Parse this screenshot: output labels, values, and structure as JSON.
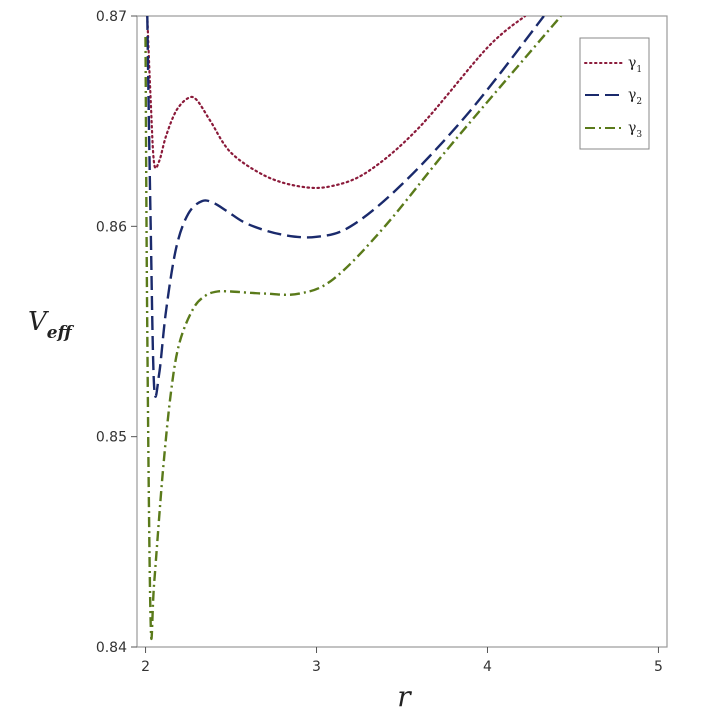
{
  "chart_data": {
    "type": "line",
    "xlabel": "r",
    "ylabel": "V",
    "ylabel_sub": "eff",
    "xlim": [
      1.95,
      5.05
    ],
    "ylim": [
      0.84,
      0.87
    ],
    "xticks": [
      2,
      3,
      4,
      5
    ],
    "xtick_labels": [
      "2",
      "3",
      "4",
      "5"
    ],
    "yticks": [
      0.84,
      0.85,
      0.86,
      0.87
    ],
    "ytick_labels": [
      "0.84",
      "0.85",
      "0.86",
      "0.87"
    ],
    "grid": false,
    "legend_position": "top-right",
    "series": [
      {
        "name": "γ",
        "name_sub": "1",
        "color": "#8b1a3a",
        "style": "dotted",
        "x": [
          2.01,
          2.03,
          2.05,
          2.08,
          2.12,
          2.18,
          2.25,
          2.3,
          2.38,
          2.5,
          2.7,
          2.9,
          3.08,
          3.3,
          3.6,
          4.0,
          4.22
        ],
        "y": [
          0.87,
          0.866,
          0.863,
          0.8631,
          0.8643,
          0.8655,
          0.8661,
          0.866,
          0.865,
          0.8635,
          0.8624,
          0.8619,
          0.8619,
          0.8626,
          0.8647,
          0.8685,
          0.87
        ]
      },
      {
        "name": "γ",
        "name_sub": "2",
        "color": "#1a2a6c",
        "style": "dashed",
        "x": [
          2.01,
          2.03,
          2.05,
          2.08,
          2.12,
          2.18,
          2.25,
          2.33,
          2.4,
          2.48,
          2.6,
          2.8,
          3.0,
          3.2,
          3.5,
          3.9,
          4.33
        ],
        "y": [
          0.87,
          0.86,
          0.8524,
          0.853,
          0.856,
          0.859,
          0.8606,
          0.8612,
          0.8611,
          0.8607,
          0.8601,
          0.8596,
          0.8595,
          0.86,
          0.862,
          0.8655,
          0.87
        ]
      },
      {
        "name": "γ",
        "name_sub": "3",
        "color": "#5a7a1a",
        "style": "dashdot",
        "x": [
          2.0,
          2.01,
          2.03,
          2.05,
          2.1,
          2.15,
          2.2,
          2.28,
          2.35,
          2.42,
          2.5,
          2.7,
          2.9,
          3.1,
          3.4,
          3.8,
          4.43
        ],
        "y": [
          0.869,
          0.855,
          0.8411,
          0.843,
          0.8482,
          0.8522,
          0.8545,
          0.8561,
          0.8567,
          0.8569,
          0.8569,
          0.8568,
          0.8568,
          0.8575,
          0.86,
          0.864,
          0.87
        ]
      }
    ]
  }
}
